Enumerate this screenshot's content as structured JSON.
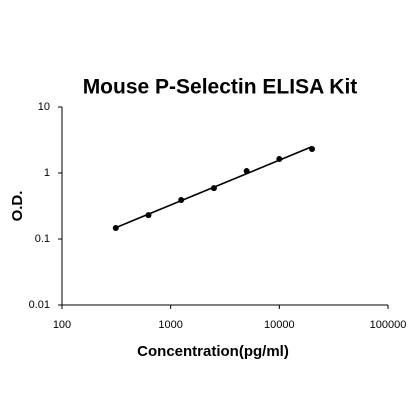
{
  "chart_data": {
    "type": "scatter",
    "title": "Mouse P-Selectin ELISA Kit",
    "x_label": "Concentration(pg/ml)",
    "y_label": "O.D.",
    "x": [
      312.5,
      625,
      1250,
      2500,
      5000,
      10000,
      20000
    ],
    "values": [
      0.147,
      0.23,
      0.39,
      0.59,
      1.07,
      1.63,
      2.31
    ],
    "color": "#000000",
    "x_log": true,
    "y_log": true,
    "trendline": "power",
    "xlim": [
      100,
      100000
    ],
    "xticks": [
      100,
      1000,
      10000,
      100000
    ],
    "ylim": [
      0.01,
      10
    ],
    "yticks": [
      0.01,
      0.1,
      1,
      10
    ]
  }
}
